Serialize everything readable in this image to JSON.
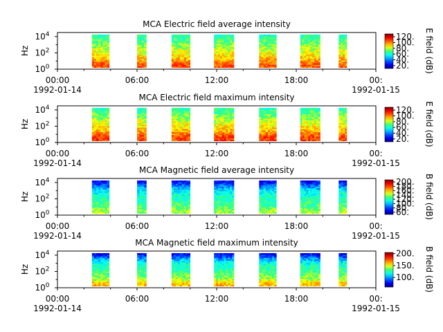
{
  "chart_data": [
    {
      "type": "heatmap",
      "title": "MCA  Electric field average intensity",
      "ylabel": "Hz",
      "y_scale": "log",
      "y_ticks": [
        "10^0",
        "10^2",
        "10^4"
      ],
      "x_ticks": [
        "00:00",
        "06:00",
        "12:00",
        "18:00",
        "00:"
      ],
      "x_tick_dates": [
        "1992-01-14",
        "1992-01-15"
      ],
      "colorbar": {
        "label": "E field (dB)",
        "ticks": [
          "20.",
          "40.",
          "60.",
          "80.",
          "100.",
          "120."
        ],
        "range": [
          10,
          130
        ],
        "colorscale": "rainbow"
      },
      "data_intervals_hours": [
        [
          2.6,
          3.9
        ],
        [
          6.0,
          6.7
        ],
        [
          8.6,
          10.0
        ],
        [
          11.8,
          13.3
        ],
        [
          15.2,
          16.5
        ],
        [
          18.3,
          19.8
        ],
        [
          21.2,
          21.8
        ]
      ],
      "intensity_profile": [
        [
          4.3,
          60
        ],
        [
          3.5,
          70
        ],
        [
          2.5,
          80
        ],
        [
          1.5,
          90
        ],
        [
          0.6,
          105
        ]
      ]
    },
    {
      "type": "heatmap",
      "title": "MCA  Electric field maximum intensity",
      "ylabel": "Hz",
      "y_scale": "log",
      "y_ticks": [
        "10^0",
        "10^2",
        "10^4"
      ],
      "x_ticks": [
        "00:00",
        "06:00",
        "12:00",
        "18:00",
        "00:"
      ],
      "x_tick_dates": [
        "1992-01-14",
        "1992-01-15"
      ],
      "colorbar": {
        "label": "E field (dB)",
        "ticks": [
          "20.",
          "40.",
          "60.",
          "80.",
          "100.",
          "120."
        ],
        "range": [
          10,
          130
        ],
        "colorscale": "rainbow"
      },
      "data_intervals_hours": [
        [
          2.6,
          3.9
        ],
        [
          6.0,
          6.7
        ],
        [
          8.6,
          10.0
        ],
        [
          11.8,
          13.3
        ],
        [
          15.2,
          16.5
        ],
        [
          18.3,
          19.8
        ],
        [
          21.2,
          21.8
        ]
      ],
      "intensity_profile": [
        [
          4.3,
          62
        ],
        [
          3.5,
          72
        ],
        [
          2.5,
          82
        ],
        [
          1.5,
          93
        ],
        [
          0.6,
          108
        ]
      ]
    },
    {
      "type": "heatmap",
      "title": "MCA  Magnetic field average intensity",
      "ylabel": "Hz",
      "y_scale": "log",
      "y_ticks": [
        "10^0",
        "10^2",
        "10^4"
      ],
      "x_ticks": [
        "00:00",
        "06:00",
        "12:00",
        "18:00",
        "00:"
      ],
      "x_tick_dates": [
        "1992-01-14",
        "1992-01-15"
      ],
      "colorbar": {
        "label": "B field (dB)",
        "ticks": [
          "60.",
          "80.",
          "100.",
          "120.",
          "140.",
          "160.",
          "180.",
          "200."
        ],
        "range": [
          50,
          210
        ],
        "colorscale": "rainbow"
      },
      "data_intervals_hours": [
        [
          2.6,
          3.9
        ],
        [
          6.0,
          6.7
        ],
        [
          8.6,
          10.0
        ],
        [
          11.8,
          13.3
        ],
        [
          15.2,
          16.5
        ],
        [
          18.3,
          19.8
        ],
        [
          21.2,
          21.8
        ]
      ],
      "intensity_profile": [
        [
          4.3,
          65
        ],
        [
          3.7,
          85
        ],
        [
          3.0,
          110
        ],
        [
          2.0,
          120
        ],
        [
          1.2,
          128
        ],
        [
          0.5,
          140
        ]
      ]
    },
    {
      "type": "heatmap",
      "title": "MCA  Magnetic field maximum intensity",
      "ylabel": "Hz",
      "y_scale": "log",
      "y_ticks": [
        "10^0",
        "10^2",
        "10^4"
      ],
      "x_ticks": [
        "00:00",
        "06:00",
        "12:00",
        "18:00",
        "00:"
      ],
      "x_tick_dates": [
        "1992-01-14",
        "1992-01-15"
      ],
      "colorbar": {
        "label": "B field (dB)",
        "ticks": [
          "100.",
          "150.",
          "200."
        ],
        "range": [
          60,
          205
        ],
        "colorscale": "rainbow"
      },
      "data_intervals_hours": [
        [
          2.6,
          3.9
        ],
        [
          6.0,
          6.7
        ],
        [
          8.6,
          10.0
        ],
        [
          11.8,
          13.3
        ],
        [
          15.2,
          16.5
        ],
        [
          18.3,
          19.8
        ],
        [
          21.2,
          21.8
        ]
      ],
      "intensity_profile": [
        [
          4.3,
          70
        ],
        [
          3.7,
          95
        ],
        [
          3.0,
          120
        ],
        [
          2.0,
          130
        ],
        [
          1.2,
          140
        ],
        [
          0.5,
          160
        ]
      ]
    }
  ]
}
